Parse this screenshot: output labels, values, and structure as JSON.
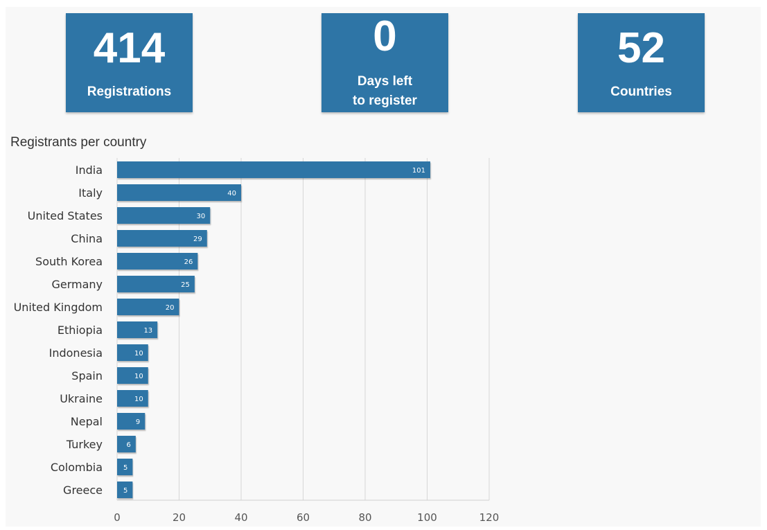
{
  "stats": [
    {
      "value": "414",
      "label": "Registrations"
    },
    {
      "value": "0",
      "label": "Days left to register"
    },
    {
      "value": "52",
      "label": "Countries"
    }
  ],
  "colors": {
    "accent": "#2e75a6",
    "grid": "#d6d6d6",
    "text": "#333333"
  },
  "chart_data": {
    "type": "bar",
    "orientation": "horizontal",
    "title": "Registrants per country",
    "xlabel": "",
    "ylabel": "",
    "categories": [
      "India",
      "Italy",
      "United States",
      "China",
      "South Korea",
      "Germany",
      "United Kingdom",
      "Ethiopia",
      "Indonesia",
      "Spain",
      "Ukraine",
      "Nepal",
      "Turkey",
      "Colombia",
      "Greece"
    ],
    "values": [
      101,
      40,
      30,
      29,
      26,
      25,
      20,
      13,
      10,
      10,
      10,
      9,
      6,
      5,
      5
    ],
    "xlim": [
      0,
      120
    ],
    "xticks": [
      0,
      20,
      40,
      60,
      80,
      100,
      120
    ],
    "grid": true,
    "data_labels": true
  }
}
